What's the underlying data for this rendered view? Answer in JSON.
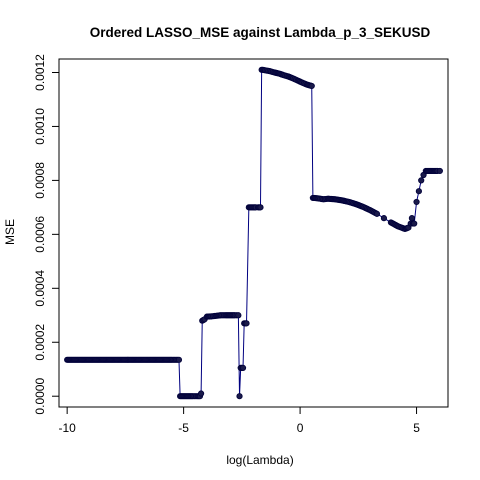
{
  "chart_data": {
    "type": "line",
    "title": "Ordered LASSO_MSE against Lambda_p_3_SEKUSD",
    "xlabel": "log(Lambda)",
    "ylabel": "MSE",
    "xlim": [
      -10.35,
      6.35
    ],
    "ylim": [
      -4e-05,
      0.00125
    ],
    "x_ticks": [
      -10,
      -5,
      0,
      5
    ],
    "x_tick_labels": [
      "-10",
      "-5",
      "0",
      "5"
    ],
    "y_ticks": [
      0.0,
      0.0002,
      0.0004,
      0.0006,
      0.0008,
      0.001,
      0.0012
    ],
    "y_tick_labels": [
      "0.0000",
      "0.0002",
      "0.0004",
      "0.0006",
      "0.0008",
      "0.0010",
      "0.0012"
    ],
    "grid": false,
    "legend": "none",
    "colors": {
      "line": "#000080",
      "point_fill": "#1a1a4a",
      "point_stroke": "#00003a"
    },
    "series": [
      {
        "x": [
          -10.0,
          -9.5,
          -9.0,
          -8.5,
          -8.0,
          -7.5,
          -7.0,
          -6.5,
          -6.0,
          -5.5,
          -5.2,
          -5.15,
          -5.0,
          -4.8,
          -4.6,
          -4.4,
          -4.3,
          -4.25,
          -4.2,
          -4.1,
          -4.0,
          -3.8,
          -3.6,
          -3.4,
          -3.2,
          -3.0,
          -2.8,
          -2.65,
          -2.6,
          -2.55,
          -2.5,
          -2.45,
          -2.4,
          -2.3,
          -2.2,
          -2.1,
          -2.0,
          -1.9,
          -1.8,
          -1.7,
          -1.65,
          -1.6,
          -1.5,
          -1.3,
          -1.1,
          -0.9,
          -0.7,
          -0.5,
          -0.3,
          -0.1,
          0.1,
          0.3,
          0.5,
          0.55,
          0.6,
          0.8,
          1.0,
          1.2,
          1.5,
          1.8,
          2.1,
          2.4,
          2.7,
          3.0,
          3.3,
          3.6,
          3.9,
          4.2,
          4.5,
          4.65,
          4.75,
          4.8,
          4.85,
          4.9,
          5.0,
          5.1,
          5.2,
          5.3,
          5.4,
          5.45,
          5.5,
          5.7,
          5.9,
          6.0
        ],
        "y": [
          0.000135,
          0.000135,
          0.000135,
          0.000135,
          0.000135,
          0.000135,
          0.000135,
          0.000135,
          0.000135,
          0.000135,
          0.000135,
          0.0,
          0.0,
          0.0,
          0.0,
          0.0,
          0.0,
          1e-05,
          0.00028,
          0.000285,
          0.000295,
          0.000296,
          0.000298,
          0.0003,
          0.0003,
          0.0003,
          0.0003,
          0.0003,
          0.0,
          0.000105,
          0.000105,
          0.000105,
          0.00027,
          0.00027,
          0.0007,
          0.0007,
          0.0007,
          0.0007,
          0.0007,
          0.0007,
          0.00121,
          0.00121,
          0.001208,
          0.001205,
          0.0012,
          0.001196,
          0.00119,
          0.001185,
          0.001178,
          0.00117,
          0.001162,
          0.001155,
          0.00115,
          0.000735,
          0.000735,
          0.000733,
          0.00073,
          0.000732,
          0.00073,
          0.000726,
          0.00072,
          0.000712,
          0.000702,
          0.00069,
          0.000676,
          0.00066,
          0.000644,
          0.00063,
          0.00062,
          0.000625,
          0.00064,
          0.00066,
          0.00064,
          0.00064,
          0.00072,
          0.00076,
          0.0008,
          0.00082,
          0.000835,
          0.000835,
          0.000835,
          0.000835,
          0.000835,
          0.000835
        ]
      }
    ]
  }
}
